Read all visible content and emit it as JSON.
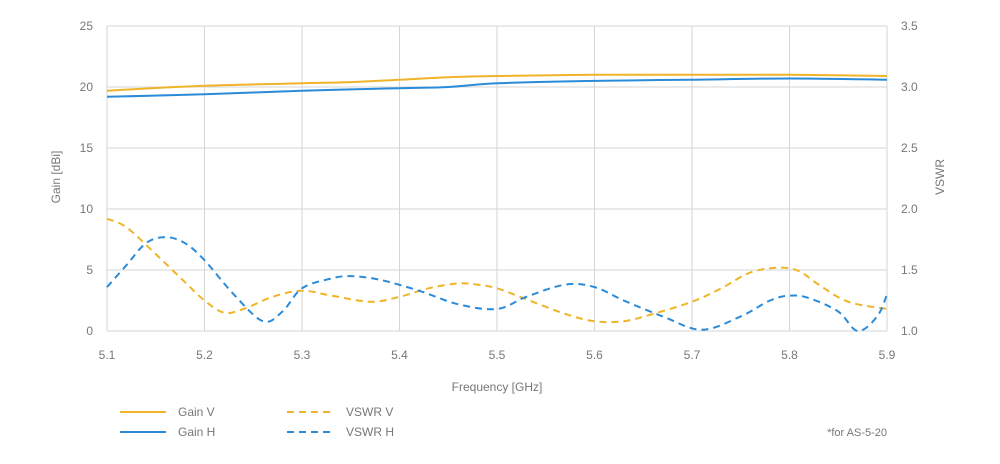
{
  "chart_data": {
    "type": "line",
    "xlabel": "Frequency [GHz]",
    "ylabel": "Gain [dBi]",
    "y2label": "VSWR",
    "xlim": [
      5.1,
      5.9
    ],
    "ylim": [
      0,
      25
    ],
    "y2lim": [
      1.0,
      3.5
    ],
    "x_ticks": [
      "5.1",
      "5.2",
      "5.3",
      "5.4",
      "5.5",
      "5.6",
      "5.7",
      "5.8",
      "5.9"
    ],
    "y_ticks": [
      "0",
      "5",
      "10",
      "15",
      "20",
      "25"
    ],
    "y2_ticks": [
      "1.0",
      "1.5",
      "2.0",
      "2.5",
      "3.0",
      "3.5"
    ],
    "grid": true,
    "legend_position": "bottom-left",
    "series": [
      {
        "name": "Gain V",
        "axis": "left",
        "style": "solid",
        "color": "#F0B429",
        "x": [
          5.1,
          5.2,
          5.3,
          5.35,
          5.4,
          5.45,
          5.5,
          5.6,
          5.7,
          5.8,
          5.9
        ],
        "y": [
          19.7,
          20.1,
          20.3,
          20.4,
          20.6,
          20.8,
          20.9,
          21.0,
          21.0,
          21.0,
          20.9
        ]
      },
      {
        "name": "Gain H",
        "axis": "left",
        "style": "solid",
        "color": "#2A8BD8",
        "x": [
          5.1,
          5.2,
          5.3,
          5.4,
          5.45,
          5.5,
          5.6,
          5.7,
          5.8,
          5.9
        ],
        "y": [
          19.2,
          19.4,
          19.7,
          19.9,
          20.0,
          20.3,
          20.5,
          20.6,
          20.7,
          20.6
        ]
      },
      {
        "name": "VSWR V",
        "axis": "right",
        "style": "dashed",
        "color": "#F0B429",
        "x": [
          5.1,
          5.12,
          5.15,
          5.18,
          5.2,
          5.22,
          5.24,
          5.27,
          5.3,
          5.33,
          5.37,
          5.4,
          5.43,
          5.46,
          5.48,
          5.5,
          5.53,
          5.57,
          5.6,
          5.63,
          5.66,
          5.7,
          5.73,
          5.76,
          5.79,
          5.81,
          5.83,
          5.86,
          5.9
        ],
        "y": [
          1.92,
          1.85,
          1.63,
          1.4,
          1.25,
          1.15,
          1.18,
          1.28,
          1.33,
          1.29,
          1.24,
          1.28,
          1.35,
          1.39,
          1.38,
          1.35,
          1.26,
          1.14,
          1.08,
          1.08,
          1.14,
          1.24,
          1.35,
          1.48,
          1.52,
          1.49,
          1.38,
          1.24,
          1.18
        ]
      },
      {
        "name": "VSWR H",
        "axis": "right",
        "style": "dashed",
        "color": "#2A8BD8",
        "x": [
          5.1,
          5.12,
          5.14,
          5.16,
          5.18,
          5.2,
          5.23,
          5.26,
          5.28,
          5.3,
          5.33,
          5.35,
          5.38,
          5.42,
          5.46,
          5.5,
          5.53,
          5.57,
          5.6,
          5.63,
          5.67,
          5.71,
          5.75,
          5.78,
          5.8,
          5.82,
          5.85,
          5.87,
          5.89,
          5.9
        ],
        "y": [
          1.36,
          1.54,
          1.72,
          1.77,
          1.72,
          1.58,
          1.3,
          1.08,
          1.16,
          1.35,
          1.43,
          1.45,
          1.42,
          1.33,
          1.22,
          1.18,
          1.28,
          1.38,
          1.36,
          1.25,
          1.12,
          1.01,
          1.12,
          1.25,
          1.29,
          1.27,
          1.16,
          1.0,
          1.12,
          1.3
        ]
      }
    ],
    "legend": {
      "col1": [
        "Gain V",
        "Gain H"
      ],
      "col2": [
        "VSWR V",
        "VSWR H"
      ]
    },
    "footnote": "*for AS-5-20"
  }
}
